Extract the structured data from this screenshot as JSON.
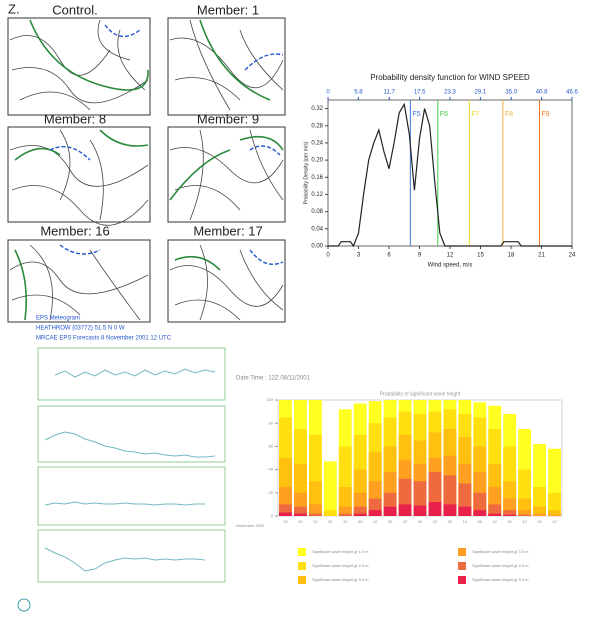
{
  "maps": {
    "panel_label": "Z.",
    "titles": [
      "Control.",
      "Member: 1",
      "Member: 8",
      "Member: 9",
      "Member: 16",
      "Member: 17"
    ]
  },
  "meteogram": {
    "lines": [
      "EPS Meteogram",
      "HEATHROW (03772)  51.5 N  0 W",
      "MRCAE    EPS Forecasts  8 November 2001  12 UTC"
    ]
  },
  "chart_data": [
    {
      "type": "line",
      "title": "Probability density function for WIND SPEED",
      "xlabel": "Wind speed, m/s",
      "ylabel": "Probability Density (per m/s)",
      "x": [
        0,
        1,
        1.3,
        2.2,
        2.5,
        3,
        3.5,
        4,
        4.5,
        5,
        5.5,
        6,
        6.5,
        7,
        7.5,
        8,
        8.5,
        9,
        9.5,
        10,
        10.5,
        11,
        11.5,
        17,
        17.3,
        18.7,
        19,
        24
      ],
      "values": [
        0,
        0,
        0.01,
        0.01,
        0,
        0.03,
        0.12,
        0.2,
        0.24,
        0.27,
        0.22,
        0.18,
        0.24,
        0.31,
        0.33,
        0.26,
        0.13,
        0.25,
        0.32,
        0.28,
        0.15,
        0.03,
        0,
        0,
        0.01,
        0.01,
        0,
        0
      ],
      "color": "#222222",
      "xlim": [
        0,
        24
      ],
      "xticks": [
        0,
        3,
        6,
        9,
        12,
        15,
        18,
        21,
        24
      ],
      "ylim": [
        0,
        0.34
      ],
      "yticks": [
        {
          "value": 0,
          "label": "0.00"
        },
        0.04,
        0.08,
        0.12,
        0.16,
        {
          "value": 0.2,
          "label": "0.20"
        },
        0.24,
        0.28,
        0.32
      ],
      "x2lim": [
        0,
        46.6
      ],
      "x2ticks": [
        0,
        5.8,
        11.7,
        17.5,
        23.3,
        29.1,
        {
          "value": 35,
          "label": "35.0"
        },
        40.8,
        46.6
      ],
      "markers": [
        {
          "label": "F5",
          "x": 8.1,
          "color": "#3c78d8"
        },
        {
          "label": "F6",
          "x": 10.8,
          "color": "#44cc44"
        },
        {
          "label": "F7",
          "x": 13.9,
          "color": "#e8d820"
        },
        {
          "label": "F8",
          "x": 17.2,
          "color": "#f5b041"
        },
        {
          "label": "F9",
          "x": 20.8,
          "color": "#f07828"
        }
      ]
    },
    {
      "type": "bar",
      "title": "Probability of significant wave height",
      "header": "Date Time : 12Z 08/11/2001",
      "xlabel": "November 2001",
      "categories": [
        "12",
        "00",
        "12",
        "00",
        "12",
        "00",
        "12",
        "00",
        "12",
        "00",
        "12",
        "00",
        "12",
        "00",
        "12",
        "00",
        "12",
        "00",
        "12"
      ],
      "ylim": [
        0,
        100
      ],
      "yticks": [
        0,
        20,
        40,
        60,
        80,
        100
      ],
      "series": [
        {
          "name": "Significant wave height gt 1.0 m",
          "color": "#ffff20",
          "values": [
            100,
            100,
            100,
            47,
            92,
            97,
            99,
            100,
            100,
            100,
            100,
            100,
            100,
            98,
            95,
            88,
            75,
            62,
            58
          ]
        },
        {
          "name": "Significant wave height gt 2.0 m",
          "color": "#ffdf10",
          "values": [
            85,
            75,
            70,
            5,
            60,
            70,
            80,
            85,
            90,
            88,
            90,
            92,
            88,
            85,
            75,
            60,
            40,
            25,
            20
          ]
        },
        {
          "name": "Significant wave height gt 3.0 m",
          "color": "#ffc010",
          "values": [
            50,
            45,
            30,
            0,
            25,
            40,
            55,
            60,
            70,
            65,
            72,
            75,
            68,
            60,
            45,
            30,
            15,
            8,
            5
          ]
        },
        {
          "name": "Significant wave height gt 3.5 m",
          "color": "#ffa020",
          "values": [
            25,
            20,
            10,
            0,
            8,
            20,
            30,
            38,
            48,
            45,
            50,
            52,
            45,
            38,
            25,
            15,
            5,
            2,
            1
          ]
        },
        {
          "name": "Significant wave height gt 4.0 m",
          "color": "#f06a40",
          "values": [
            10,
            8,
            2,
            0,
            2,
            8,
            15,
            20,
            32,
            30,
            38,
            35,
            28,
            20,
            10,
            5,
            1,
            0,
            0
          ]
        },
        {
          "name": "Significant wave height gt 5.0 m",
          "color": "#e8204a",
          "values": [
            3,
            2,
            0,
            0,
            0,
            2,
            5,
            8,
            10,
            9,
            12,
            10,
            8,
            5,
            2,
            1,
            0,
            0,
            0
          ]
        }
      ]
    }
  ]
}
